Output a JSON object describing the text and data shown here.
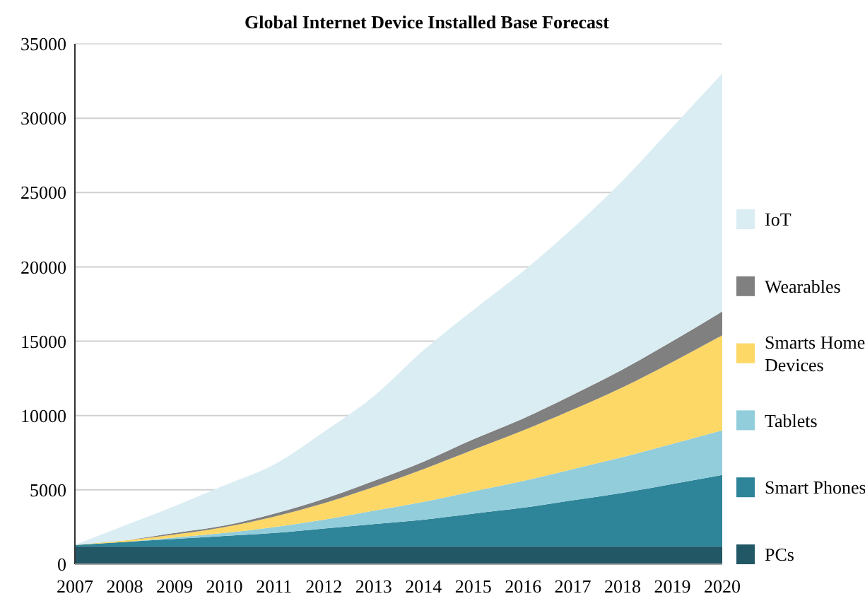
{
  "chart_data": {
    "type": "area",
    "stacked": true,
    "title": "Global Internet Device Installed Base Forecast",
    "x": [
      2007,
      2008,
      2009,
      2010,
      2011,
      2012,
      2013,
      2014,
      2015,
      2016,
      2017,
      2018,
      2019,
      2020
    ],
    "xlim": [
      2007,
      2020
    ],
    "xticks": [
      2007,
      2008,
      2009,
      2010,
      2011,
      2012,
      2013,
      2014,
      2015,
      2016,
      2017,
      2018,
      2019,
      2020
    ],
    "ylim": [
      0,
      35000
    ],
    "yticks": [
      0,
      5000,
      10000,
      15000,
      20000,
      25000,
      30000,
      35000
    ],
    "grid": "y",
    "legend": "right",
    "series": [
      {
        "name": "PCs",
        "color": "#225766",
        "values": [
          1200,
          1200,
          1200,
          1200,
          1200,
          1200,
          1200,
          1200,
          1200,
          1200,
          1200,
          1200,
          1200,
          1200
        ]
      },
      {
        "name": "Smart Phones",
        "color": "#2e8499",
        "values": [
          100,
          300,
          500,
          700,
          900,
          1200,
          1500,
          1800,
          2200,
          2600,
          3100,
          3600,
          4200,
          4800
        ]
      },
      {
        "name": "Tablets",
        "color": "#92cddb",
        "values": [
          0,
          0,
          100,
          200,
          400,
          600,
          900,
          1200,
          1500,
          1800,
          2100,
          2400,
          2700,
          3000
        ]
      },
      {
        "name": "Smarts Home Devices",
        "color": "#fdd866",
        "values": [
          0,
          100,
          200,
          400,
          700,
          1100,
          1600,
          2200,
          2800,
          3400,
          4000,
          4700,
          5500,
          6400
        ]
      },
      {
        "name": "Wearables",
        "color": "#808080",
        "values": [
          0,
          0,
          100,
          100,
          200,
          300,
          400,
          500,
          700,
          800,
          1000,
          1200,
          1400,
          1600
        ]
      },
      {
        "name": "IoT",
        "color": "#daedf3",
        "values": [
          0,
          1000,
          1800,
          2700,
          3300,
          4500,
          5700,
          7500,
          8700,
          9900,
          11200,
          12700,
          14400,
          16000
        ]
      }
    ]
  }
}
